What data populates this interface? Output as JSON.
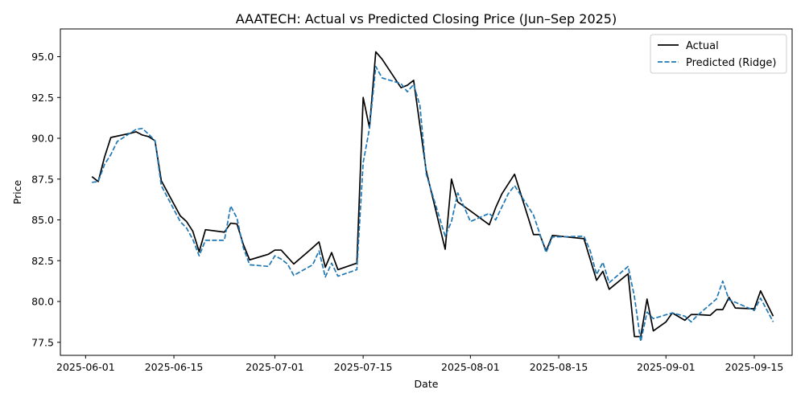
{
  "chart_data": {
    "type": "line",
    "title": "AAATECH: Actual vs Predicted Closing Price (Jun–Sep 2025)",
    "xlabel": "Date",
    "ylabel": "Price",
    "x_range": [
      "2025-05-28",
      "2025-09-21"
    ],
    "ylim": [
      76.7,
      96.7
    ],
    "x_ticks": [
      "2025-06-01",
      "2025-06-15",
      "2025-07-01",
      "2025-07-15",
      "2025-08-01",
      "2025-08-15",
      "2025-09-01",
      "2025-09-15"
    ],
    "y_ticks": [
      "77.5",
      "80.0",
      "82.5",
      "85.0",
      "87.5",
      "90.0",
      "92.5",
      "95.0"
    ],
    "grid": false,
    "legend_position": "top-right",
    "series": [
      {
        "name": "Actual",
        "color": "#000000",
        "dash": "solid",
        "points": [
          [
            "2025-06-02",
            87.65
          ],
          [
            "2025-06-03",
            87.35
          ],
          [
            "2025-06-04",
            88.85
          ],
          [
            "2025-06-05",
            90.05
          ],
          [
            "2025-06-08",
            90.3
          ],
          [
            "2025-06-09",
            90.4
          ],
          [
            "2025-06-10",
            90.2
          ],
          [
            "2025-06-11",
            90.1
          ],
          [
            "2025-06-12",
            89.85
          ],
          [
            "2025-06-13",
            87.4
          ],
          [
            "2025-06-16",
            85.25
          ],
          [
            "2025-06-17",
            84.9
          ],
          [
            "2025-06-18",
            84.3
          ],
          [
            "2025-06-19",
            83.05
          ],
          [
            "2025-06-20",
            84.4
          ],
          [
            "2025-06-23",
            84.25
          ],
          [
            "2025-06-24",
            84.8
          ],
          [
            "2025-06-25",
            84.75
          ],
          [
            "2025-06-26",
            83.5
          ],
          [
            "2025-06-27",
            82.55
          ],
          [
            "2025-06-30",
            82.9
          ],
          [
            "2025-07-01",
            83.15
          ],
          [
            "2025-07-02",
            83.15
          ],
          [
            "2025-07-04",
            82.3
          ],
          [
            "2025-07-07",
            83.3
          ],
          [
            "2025-07-08",
            83.65
          ],
          [
            "2025-07-09",
            82.1
          ],
          [
            "2025-07-10",
            83.0
          ],
          [
            "2025-07-11",
            81.95
          ],
          [
            "2025-07-14",
            82.35
          ],
          [
            "2025-07-15",
            92.5
          ],
          [
            "2025-07-16",
            90.65
          ],
          [
            "2025-07-17",
            95.3
          ],
          [
            "2025-07-18",
            94.85
          ],
          [
            "2025-07-21",
            93.1
          ],
          [
            "2025-07-22",
            93.25
          ],
          [
            "2025-07-23",
            93.55
          ],
          [
            "2025-07-25",
            88.0
          ],
          [
            "2025-07-28",
            83.2
          ],
          [
            "2025-07-29",
            87.5
          ],
          [
            "2025-07-30",
            86.1
          ],
          [
            "2025-08-01",
            85.55
          ],
          [
            "2025-08-04",
            84.7
          ],
          [
            "2025-08-05",
            85.75
          ],
          [
            "2025-08-06",
            86.6
          ],
          [
            "2025-08-07",
            87.2
          ],
          [
            "2025-08-08",
            87.8
          ],
          [
            "2025-08-11",
            84.1
          ],
          [
            "2025-08-12",
            84.1
          ],
          [
            "2025-08-13",
            83.1
          ],
          [
            "2025-08-14",
            84.05
          ],
          [
            "2025-08-19",
            83.85
          ],
          [
            "2025-08-21",
            81.3
          ],
          [
            "2025-08-22",
            81.85
          ],
          [
            "2025-08-23",
            80.75
          ],
          [
            "2025-08-26",
            81.7
          ],
          [
            "2025-08-27",
            77.85
          ],
          [
            "2025-08-28",
            77.85
          ],
          [
            "2025-08-29",
            80.15
          ],
          [
            "2025-08-30",
            78.2
          ],
          [
            "2025-09-01",
            78.75
          ],
          [
            "2025-09-02",
            79.3
          ],
          [
            "2025-09-04",
            78.85
          ],
          [
            "2025-09-05",
            79.2
          ],
          [
            "2025-09-06",
            79.2
          ],
          [
            "2025-09-08",
            79.15
          ],
          [
            "2025-09-09",
            79.5
          ],
          [
            "2025-09-10",
            79.5
          ],
          [
            "2025-09-11",
            80.25
          ],
          [
            "2025-09-12",
            79.6
          ],
          [
            "2025-09-15",
            79.55
          ],
          [
            "2025-09-16",
            80.65
          ],
          [
            "2025-09-18",
            79.1
          ]
        ]
      },
      {
        "name": "Predicted (Ridge)",
        "color": "#1f77b4",
        "dash": "dashed",
        "points": [
          [
            "2025-06-02",
            87.3
          ],
          [
            "2025-06-03",
            87.35
          ],
          [
            "2025-06-04",
            88.4
          ],
          [
            "2025-06-05",
            89.0
          ],
          [
            "2025-06-06",
            89.8
          ],
          [
            "2025-06-09",
            90.55
          ],
          [
            "2025-06-10",
            90.6
          ],
          [
            "2025-06-11",
            90.25
          ],
          [
            "2025-06-12",
            89.85
          ],
          [
            "2025-06-13",
            87.1
          ],
          [
            "2025-06-16",
            84.9
          ],
          [
            "2025-06-17",
            84.5
          ],
          [
            "2025-06-18",
            83.8
          ],
          [
            "2025-06-19",
            82.8
          ],
          [
            "2025-06-20",
            83.75
          ],
          [
            "2025-06-23",
            83.75
          ],
          [
            "2025-06-24",
            85.85
          ],
          [
            "2025-06-25",
            85.1
          ],
          [
            "2025-06-26",
            83.3
          ],
          [
            "2025-06-27",
            82.25
          ],
          [
            "2025-06-30",
            82.15
          ],
          [
            "2025-07-01",
            82.8
          ],
          [
            "2025-07-02",
            82.6
          ],
          [
            "2025-07-03",
            82.3
          ],
          [
            "2025-07-04",
            81.6
          ],
          [
            "2025-07-07",
            82.25
          ],
          [
            "2025-07-08",
            83.1
          ],
          [
            "2025-07-09",
            81.5
          ],
          [
            "2025-07-10",
            82.35
          ],
          [
            "2025-07-11",
            81.55
          ],
          [
            "2025-07-14",
            81.95
          ],
          [
            "2025-07-15",
            88.5
          ],
          [
            "2025-07-16",
            90.6
          ],
          [
            "2025-07-17",
            94.4
          ],
          [
            "2025-07-18",
            93.7
          ],
          [
            "2025-07-21",
            93.35
          ],
          [
            "2025-07-22",
            92.85
          ],
          [
            "2025-07-23",
            93.3
          ],
          [
            "2025-07-24",
            92.0
          ],
          [
            "2025-07-25",
            87.8
          ],
          [
            "2025-07-28",
            84.0
          ],
          [
            "2025-07-29",
            84.9
          ],
          [
            "2025-07-30",
            86.65
          ],
          [
            "2025-07-31",
            85.8
          ],
          [
            "2025-08-01",
            84.9
          ],
          [
            "2025-08-04",
            85.4
          ],
          [
            "2025-08-05",
            85.0
          ],
          [
            "2025-08-06",
            85.8
          ],
          [
            "2025-08-07",
            86.6
          ],
          [
            "2025-08-08",
            87.1
          ],
          [
            "2025-08-11",
            85.3
          ],
          [
            "2025-08-12",
            84.15
          ],
          [
            "2025-08-13",
            83.0
          ],
          [
            "2025-08-14",
            83.95
          ],
          [
            "2025-08-19",
            84.0
          ],
          [
            "2025-08-20",
            83.1
          ],
          [
            "2025-08-21",
            81.65
          ],
          [
            "2025-08-22",
            82.4
          ],
          [
            "2025-08-23",
            81.15
          ],
          [
            "2025-08-26",
            82.15
          ],
          [
            "2025-08-27",
            80.3
          ],
          [
            "2025-08-28",
            77.55
          ],
          [
            "2025-08-29",
            79.35
          ],
          [
            "2025-08-30",
            78.95
          ],
          [
            "2025-09-02",
            79.3
          ],
          [
            "2025-09-04",
            79.1
          ],
          [
            "2025-09-05",
            78.75
          ],
          [
            "2025-09-06",
            79.15
          ],
          [
            "2025-09-09",
            80.15
          ],
          [
            "2025-09-10",
            81.25
          ],
          [
            "2025-09-11",
            80.1
          ],
          [
            "2025-09-12",
            79.95
          ],
          [
            "2025-09-15",
            79.45
          ],
          [
            "2025-09-16",
            80.2
          ],
          [
            "2025-09-18",
            78.75
          ]
        ]
      }
    ]
  }
}
